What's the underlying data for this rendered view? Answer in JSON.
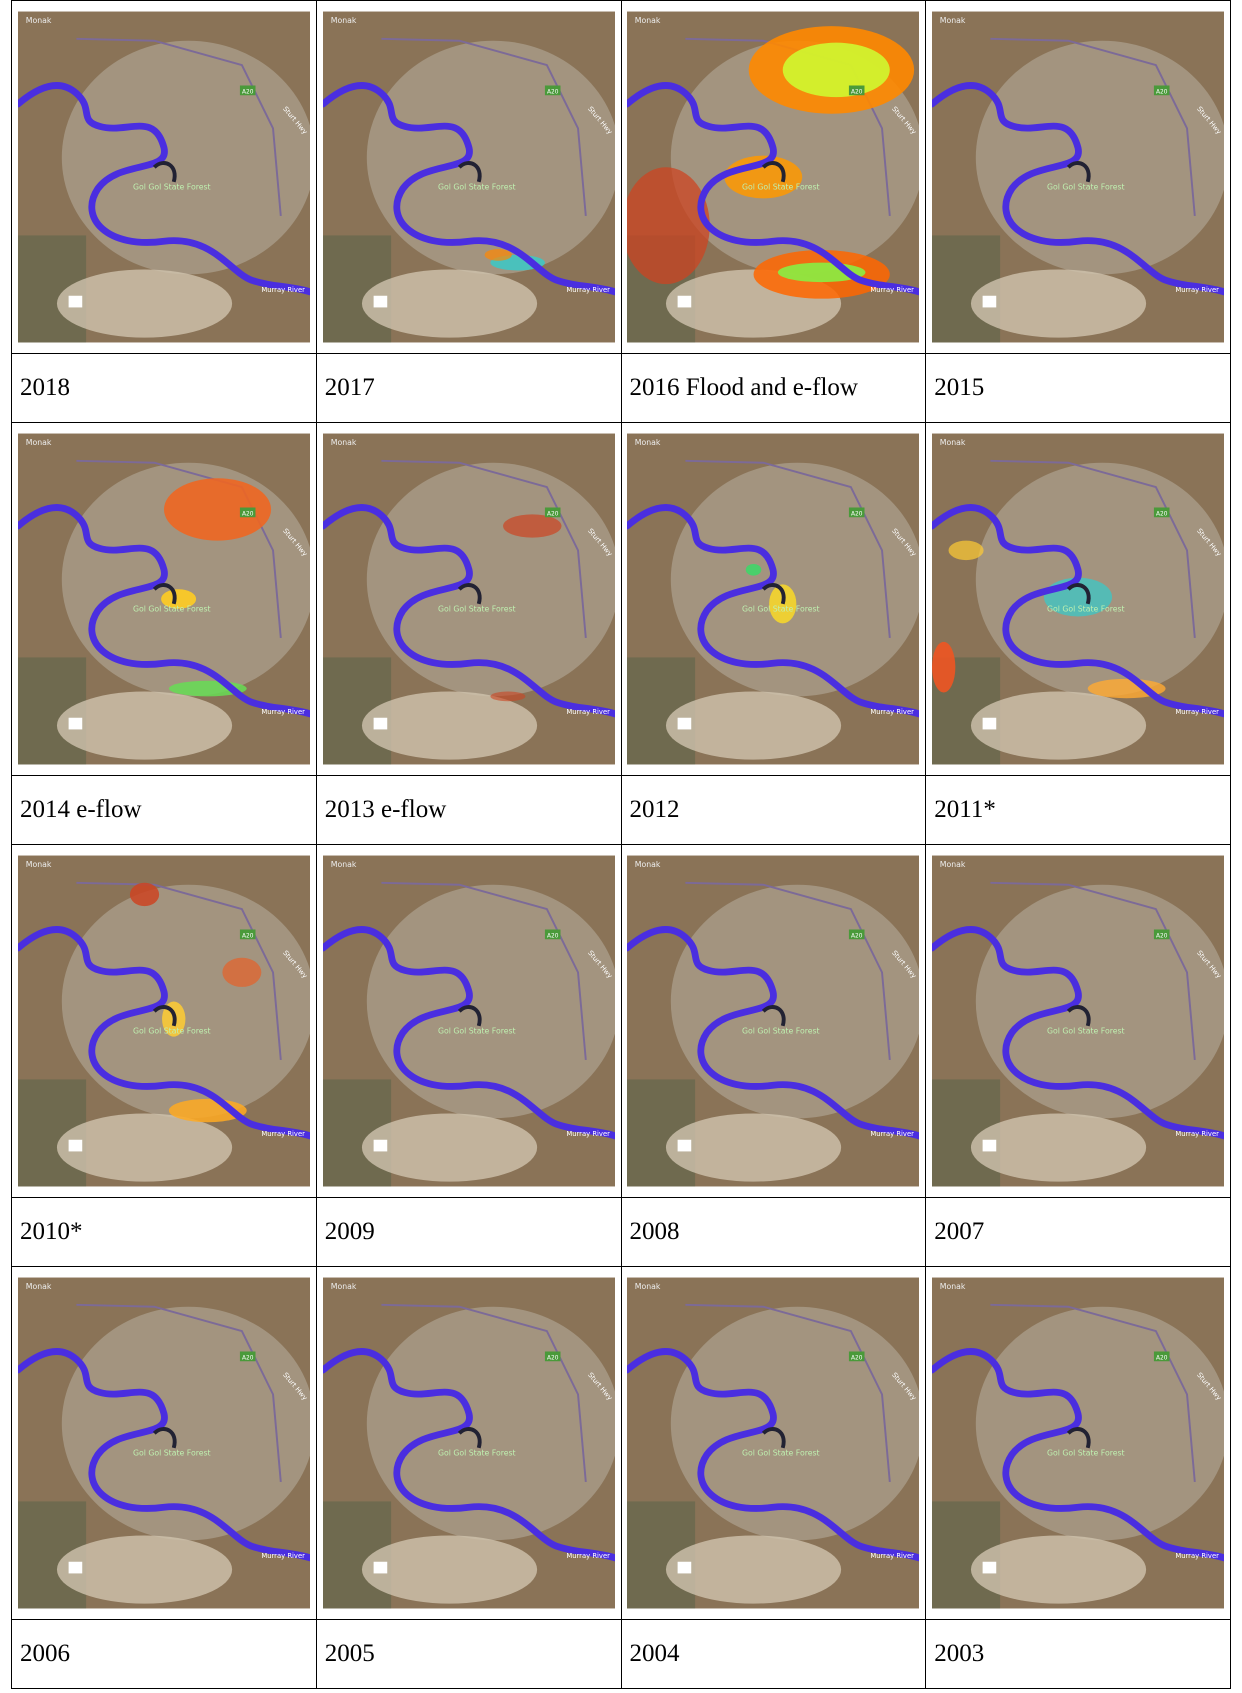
{
  "table": {
    "rows": [
      [
        "2018",
        "2017",
        "2016 Flood and e-flow",
        "2015"
      ],
      [
        "2014 e-flow",
        "2013 e-flow",
        "2012",
        "2011*"
      ],
      [
        "2010*",
        "2009",
        "2008",
        "2007"
      ],
      [
        "2006",
        "2005",
        "2004",
        "2003"
      ]
    ]
  },
  "map_labels": {
    "town": "Monak",
    "road_sign": "A20",
    "highway": "Sturt Hwy",
    "forest": "Gol Gol State Forest",
    "river": "Murray River"
  }
}
